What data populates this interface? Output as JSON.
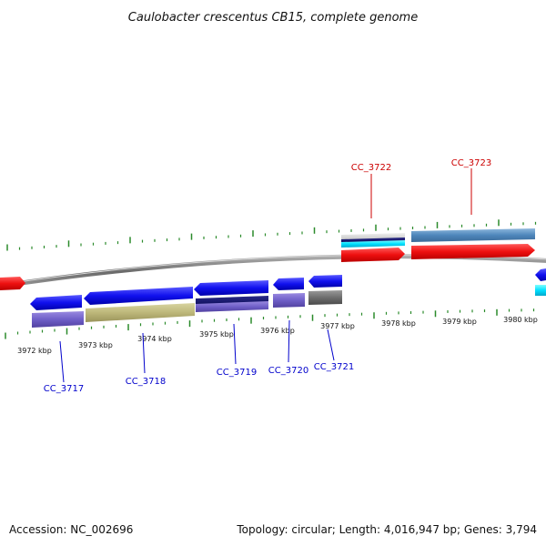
{
  "title": "Caulobacter crescentus CB15, complete genome",
  "footer": {
    "accession": "Accession: NC_002696",
    "summary": "Topology: circular; Length: 4,016,947 bp; Genes: 3,794"
  },
  "colors": {
    "forward_label": "#cc0000",
    "reverse_label": "#0000cc",
    "tick": "#2a8a2a",
    "backbone": "#777777"
  },
  "kbp_labels": [
    "3972 kbp",
    "3973 kbp",
    "3974 kbp",
    "3975 kbp",
    "3976 kbp",
    "3977 kbp",
    "3978 kbp",
    "3979 kbp",
    "3980 kbp"
  ],
  "genes_forward": [
    {
      "label": "CC_3722"
    },
    {
      "label": "CC_3723"
    }
  ],
  "genes_reverse": [
    {
      "label": "CC_3717"
    },
    {
      "label": "CC_3718"
    },
    {
      "label": "CC_3719"
    },
    {
      "label": "CC_3720"
    },
    {
      "label": "CC_3721"
    }
  ]
}
